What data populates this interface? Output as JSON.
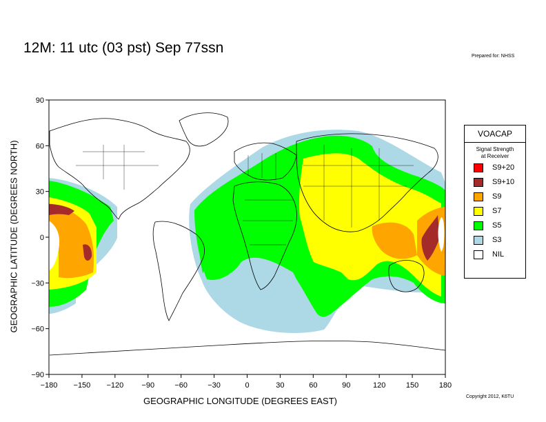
{
  "header": {
    "title": "12M:  11 utc (03 pst) Sep 77ssn",
    "prepared_for": "Prepared for: NHSS",
    "copyright": "Copyright 2012, K6TU"
  },
  "axes": {
    "xlabel": "GEOGRAPHIC LONGITUDE (DEGREES EAST)",
    "ylabel": "GEOGRAPHIC LATITUDE (DEGREES NORTH)",
    "xticks": [
      "−180",
      "−150",
      "−120",
      "−90",
      "−60",
      "−30",
      "0",
      "30",
      "60",
      "90",
      "120",
      "150",
      "180"
    ],
    "yticks": [
      "90",
      "60",
      "30",
      "0",
      "−30",
      "−60",
      "−90"
    ],
    "xlim": [
      -180,
      180
    ],
    "ylim": [
      -90,
      90
    ]
  },
  "legend": {
    "title": "VOACAP",
    "subtitle_line1": "Signal Strength",
    "subtitle_line2": "at Receiver",
    "items": [
      {
        "label": "S9+20",
        "color": "#ff0000"
      },
      {
        "label": "S9+10",
        "color": "#a52a2a"
      },
      {
        "label": "S9",
        "color": "#ffa500"
      },
      {
        "label": "S7",
        "color": "#ffff00"
      },
      {
        "label": "S5",
        "color": "#00ff00"
      },
      {
        "label": "S3",
        "color": "#add8e6"
      },
      {
        "label": "NIL",
        "color": "#ffffff"
      }
    ]
  }
}
